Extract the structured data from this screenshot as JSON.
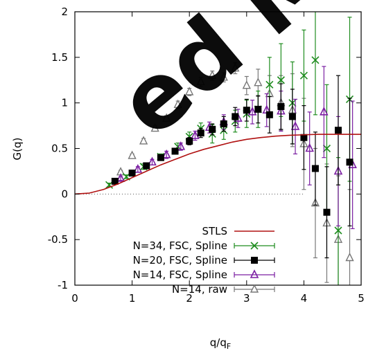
{
  "chart_data": {
    "type": "scatter",
    "xlabel": "q/q_F",
    "xlabel_main": "q/q",
    "xlabel_sub": "F",
    "ylabel": "G(q)",
    "xlim": [
      0,
      5
    ],
    "ylim": [
      -1,
      2
    ],
    "xticks": [
      "0",
      "1",
      "2",
      "3",
      "4",
      "5"
    ],
    "yticks": [
      "-1",
      "-0.5",
      "0",
      "0.5",
      "1",
      "1.5",
      "2"
    ],
    "xtick_values": [
      0,
      1,
      2,
      3,
      4,
      5
    ],
    "ytick_values": [
      -1,
      -0.5,
      0,
      0.5,
      1,
      1.5,
      2
    ],
    "zero_line": {
      "y": 0,
      "x_to": 4.0,
      "style": "dotted"
    },
    "legend_position": "bottom-left",
    "series": [
      {
        "name": "STLS",
        "kind": "line",
        "color": "#b01010",
        "x": [
          0,
          0.25,
          0.5,
          0.75,
          1.0,
          1.25,
          1.5,
          1.75,
          2.0,
          2.25,
          2.5,
          2.75,
          3.0,
          3.25,
          3.5,
          3.75,
          4.0,
          4.25,
          4.5,
          4.75,
          5.0
        ],
        "y": [
          0,
          0.01,
          0.05,
          0.11,
          0.18,
          0.25,
          0.32,
          0.38,
          0.44,
          0.49,
          0.53,
          0.57,
          0.6,
          0.62,
          0.635,
          0.645,
          0.65,
          0.655,
          0.655,
          0.655,
          0.655
        ]
      },
      {
        "name": "N=34, FSC, Spline",
        "kind": "points",
        "marker": "x",
        "color": "#1e8c1e",
        "x": [
          0.6,
          0.9,
          1.2,
          1.5,
          1.8,
          2.0,
          2.2,
          2.4,
          2.6,
          2.8,
          3.0,
          3.2,
          3.4,
          3.6,
          3.8,
          4.0,
          4.2,
          4.4,
          4.6,
          4.8
        ],
        "y": [
          0.1,
          0.19,
          0.3,
          0.41,
          0.52,
          0.63,
          0.72,
          0.66,
          0.7,
          0.8,
          0.88,
          0.93,
          1.2,
          1.25,
          1.0,
          1.3,
          1.47,
          0.5,
          -0.4,
          1.04
        ],
        "err": [
          0.02,
          0.02,
          0.03,
          0.03,
          0.04,
          0.05,
          0.06,
          0.1,
          0.1,
          0.12,
          0.15,
          0.2,
          0.3,
          0.4,
          0.45,
          0.5,
          0.6,
          0.7,
          0.8,
          0.9
        ]
      },
      {
        "name": "N=20, FSC, Spline",
        "kind": "points",
        "marker": "square",
        "color": "#000000",
        "x": [
          0.7,
          1.0,
          1.25,
          1.5,
          1.75,
          2.0,
          2.2,
          2.4,
          2.6,
          2.8,
          3.0,
          3.2,
          3.4,
          3.6,
          3.8,
          4.0,
          4.2,
          4.4,
          4.6,
          4.8
        ],
        "y": [
          0.14,
          0.23,
          0.31,
          0.4,
          0.47,
          0.58,
          0.67,
          0.71,
          0.77,
          0.85,
          0.92,
          0.93,
          0.87,
          0.96,
          0.85,
          0.62,
          0.28,
          -0.2,
          0.7,
          0.35
        ],
        "err": [
          0.02,
          0.02,
          0.03,
          0.03,
          0.03,
          0.04,
          0.05,
          0.06,
          0.08,
          0.1,
          0.12,
          0.15,
          0.2,
          0.25,
          0.3,
          0.35,
          0.4,
          0.5,
          0.6,
          0.7
        ]
      },
      {
        "name": "N=14, FSC, Spline",
        "kind": "points",
        "marker": "triangle",
        "color": "#7b1fa2",
        "x": [
          0.8,
          1.1,
          1.35,
          1.6,
          1.85,
          2.1,
          2.35,
          2.6,
          2.85,
          3.1,
          3.35,
          3.6,
          3.85,
          4.1,
          4.35,
          4.6,
          4.85
        ],
        "y": [
          0.17,
          0.27,
          0.35,
          0.43,
          0.52,
          0.64,
          0.73,
          0.79,
          0.83,
          0.9,
          0.92,
          0.91,
          0.74,
          0.5,
          0.9,
          0.25,
          0.32
        ],
        "err": [
          0.02,
          0.03,
          0.03,
          0.04,
          0.04,
          0.05,
          0.06,
          0.08,
          0.1,
          0.13,
          0.18,
          0.22,
          0.3,
          0.4,
          0.5,
          0.6,
          0.7
        ]
      },
      {
        "name": "N=14, raw",
        "kind": "points",
        "marker": "triangle-open",
        "color": "#777777",
        "x": [
          0.8,
          1.0,
          1.2,
          1.4,
          1.6,
          1.8,
          2.0,
          2.2,
          2.4,
          2.6,
          2.8,
          3.0,
          3.2,
          3.4,
          3.6,
          3.8,
          4.0,
          4.2,
          4.4,
          4.6,
          4.8
        ],
        "y": [
          0.24,
          0.42,
          0.58,
          0.72,
          0.83,
          0.98,
          1.12,
          1.23,
          1.3,
          1.28,
          1.38,
          1.19,
          1.22,
          1.1,
          1.0,
          0.92,
          0.55,
          -0.1,
          -0.32,
          -0.5,
          -0.7
        ],
        "err": [
          0.02,
          0.02,
          0.03,
          0.03,
          0.03,
          0.04,
          0.04,
          0.05,
          0.05,
          0.05,
          0.06,
          0.1,
          0.15,
          0.2,
          0.3,
          0.4,
          0.5,
          0.6,
          0.65,
          0.7,
          0.75
        ]
      }
    ]
  },
  "watermark": {
    "text": "ed Ma",
    "color": "#000000"
  }
}
